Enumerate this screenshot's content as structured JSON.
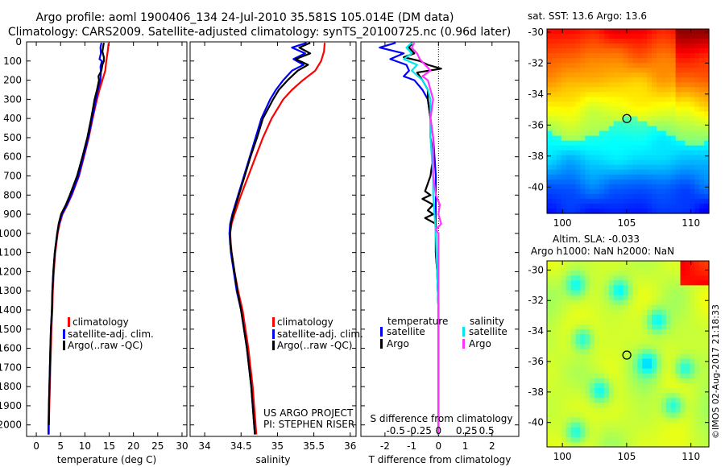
{
  "header": {
    "title_line1": "Argo profile: aoml 1900406_134 24-Jul-2010 35.581S 105.014E (DM data)",
    "title_line2": "Climatology: CARS2009. Satellite-adjusted climatology: synTS_20100725.nc (0.96d later)"
  },
  "colors": {
    "climatology": "#ff0000",
    "satellite": "#0000ff",
    "argo": "#000000",
    "sal_satellite": "#00e5ee",
    "sal_argo": "#ff33ff"
  },
  "depth_axis": {
    "ticks": [
      0,
      100,
      200,
      300,
      400,
      500,
      600,
      700,
      800,
      900,
      1000,
      1100,
      1200,
      1300,
      1400,
      1500,
      1600,
      1700,
      1800,
      1900,
      2000
    ],
    "ylim": [
      0,
      2060
    ]
  },
  "chart_data": [
    {
      "type": "line",
      "id": "temperature",
      "xlabel": "temperature (deg C)",
      "xticks": [
        0,
        5,
        10,
        15,
        20,
        25,
        30
      ],
      "xlim": [
        -2,
        31
      ],
      "legend": {
        "climatology": "climatology",
        "satellite": "satellite-adj. clim.",
        "argo": "Argo(..raw -QC)"
      },
      "series": [
        {
          "key": "climatology",
          "depth": [
            5,
            50,
            100,
            150,
            200,
            250,
            300,
            400,
            500,
            600,
            700,
            800,
            850,
            900,
            950,
            1000,
            1100,
            1200,
            1300,
            1400,
            1500,
            1600,
            1700,
            1800,
            1900,
            2000,
            2050
          ],
          "values": [
            14.9,
            14.7,
            14.4,
            14.2,
            13.6,
            13.0,
            12.5,
            11.6,
            10.8,
            9.8,
            8.8,
            7.3,
            6.4,
            5.4,
            4.8,
            4.4,
            3.9,
            3.6,
            3.4,
            3.3,
            3.1,
            3.0,
            2.9,
            2.8,
            2.7,
            2.6,
            2.6
          ]
        },
        {
          "key": "satellite",
          "depth": [
            5,
            30,
            60,
            90,
            100,
            130,
            160,
            200,
            250,
            300,
            400,
            500,
            600,
            700,
            800,
            850,
            900,
            950,
            1000,
            1100,
            1200,
            1300,
            1400,
            1500,
            1600,
            1700,
            1800,
            1900,
            2000,
            2050
          ],
          "values": [
            13.4,
            13.2,
            13.3,
            13.0,
            13.5,
            13.2,
            13.3,
            13.2,
            12.7,
            12.3,
            11.5,
            10.7,
            9.7,
            8.7,
            7.2,
            6.3,
            5.3,
            4.7,
            4.3,
            3.8,
            3.5,
            3.3,
            3.2,
            3.0,
            2.9,
            2.8,
            2.7,
            2.6,
            2.5,
            2.5
          ]
        },
        {
          "key": "argo",
          "depth": [
            5,
            20,
            50,
            80,
            100,
            120,
            150,
            180,
            200,
            250,
            300,
            400,
            500,
            600,
            700,
            800,
            850,
            900,
            950,
            1000,
            1100,
            1200,
            1300,
            1400,
            1500,
            1600,
            1700,
            1800,
            1900,
            2000
          ],
          "values": [
            13.9,
            13.8,
            13.6,
            13.9,
            13.9,
            13.6,
            13.4,
            12.8,
            12.9,
            12.5,
            12.0,
            11.3,
            10.5,
            9.5,
            8.4,
            6.9,
            6.1,
            5.1,
            4.6,
            4.3,
            3.8,
            3.5,
            3.3,
            3.2,
            3.0,
            2.9,
            2.8,
            2.7,
            2.6,
            2.6
          ]
        }
      ]
    },
    {
      "type": "line",
      "id": "salinity",
      "xlabel": "salinity",
      "xticks": [
        34,
        34.5,
        35,
        35.5,
        36
      ],
      "xtick_labels": [
        "34",
        "34.5",
        "35",
        "35.5",
        "36"
      ],
      "xlim": [
        33.8,
        36.08
      ],
      "legend": {
        "climatology": "climatology",
        "satellite": "satellite-adj. clim.",
        "argo": "Argo(..raw -QC)"
      },
      "annotation": [
        "US ARGO PROJECT",
        "PI: STEPHEN RISER"
      ],
      "series": [
        {
          "key": "climatology",
          "depth": [
            5,
            50,
            100,
            150,
            200,
            250,
            300,
            400,
            500,
            600,
            700,
            800,
            900,
            950,
            1000,
            1050,
            1100,
            1200,
            1300,
            1400,
            1500,
            1600,
            1700,
            1800,
            1900,
            2000,
            2050
          ],
          "values": [
            35.65,
            35.64,
            35.6,
            35.52,
            35.35,
            35.2,
            35.08,
            34.92,
            34.8,
            34.7,
            34.6,
            34.5,
            34.41,
            34.37,
            34.35,
            34.36,
            34.37,
            34.41,
            34.46,
            34.52,
            34.56,
            34.6,
            34.63,
            34.66,
            34.68,
            34.7,
            34.71
          ]
        },
        {
          "key": "satellite",
          "depth": [
            5,
            30,
            60,
            90,
            120,
            150,
            200,
            250,
            300,
            400,
            500,
            600,
            700,
            800,
            900,
            950,
            1000,
            1050,
            1100,
            1200,
            1300,
            1400,
            1500,
            1600,
            1700,
            1800,
            1900,
            2000,
            2050
          ],
          "values": [
            35.4,
            35.2,
            35.38,
            35.22,
            35.36,
            35.2,
            35.08,
            34.98,
            34.9,
            34.78,
            34.7,
            34.62,
            34.54,
            34.46,
            34.38,
            34.35,
            34.34,
            34.35,
            34.36,
            34.4,
            34.44,
            34.5,
            34.54,
            34.58,
            34.61,
            34.64,
            34.66,
            34.68,
            34.69
          ]
        },
        {
          "key": "argo",
          "depth": [
            5,
            30,
            60,
            90,
            120,
            150,
            200,
            250,
            300,
            400,
            500,
            600,
            700,
            800,
            900,
            950,
            1000,
            1050,
            1100,
            1200,
            1300,
            1400,
            1500,
            1600,
            1700,
            1800,
            1900,
            2000,
            2050
          ],
          "values": [
            35.45,
            35.3,
            35.45,
            35.25,
            35.42,
            35.28,
            35.14,
            35.02,
            34.94,
            34.8,
            34.72,
            34.63,
            34.55,
            34.47,
            34.39,
            34.36,
            34.35,
            34.35,
            34.37,
            34.41,
            34.45,
            34.5,
            34.54,
            34.58,
            34.61,
            34.64,
            34.66,
            34.68,
            34.69
          ]
        }
      ]
    },
    {
      "type": "line",
      "id": "difference",
      "xlabel": "T difference from climatology",
      "top_axis_label": "S difference from climatology",
      "xticks": [
        -2,
        -1,
        0,
        1,
        2
      ],
      "top_xtick_labels": [
        "-0.5",
        "-0.25",
        "0",
        "0.25",
        "0.5"
      ],
      "xlim": [
        -2.9,
        3.0
      ],
      "legend": {
        "temperature": "temperature",
        "salinity": "salinity",
        "t_satellite": "satellite",
        "t_argo": "Argo",
        "s_satellite": "satellite",
        "s_argo": "Argo"
      },
      "series": [
        {
          "key": "satellite",
          "depth": [
            5,
            30,
            60,
            90,
            120,
            150,
            180,
            200,
            250,
            300,
            400,
            500,
            600,
            700,
            800,
            900,
            1000,
            1100,
            1200,
            1400,
            1600,
            1800,
            2000,
            2050
          ],
          "values": [
            -1.6,
            -2.2,
            -1.3,
            -1.8,
            -1.2,
            -1.1,
            -1.3,
            -0.9,
            -0.6,
            -0.4,
            -0.3,
            -0.2,
            -0.15,
            -0.1,
            -0.1,
            -0.1,
            -0.1,
            -0.1,
            -0.05,
            0,
            0,
            0,
            0,
            0
          ]
        },
        {
          "key": "argo",
          "depth": [
            5,
            30,
            60,
            80,
            100,
            120,
            140,
            160,
            200,
            250,
            300,
            400,
            500,
            600,
            700,
            780,
            800,
            820,
            850,
            880,
            900,
            920,
            950,
            1000,
            1100,
            1200,
            1400,
            1600,
            1800,
            2000,
            2050
          ],
          "values": [
            -1.0,
            -1.1,
            -0.9,
            -1.3,
            -0.7,
            -0.4,
            0.1,
            -0.8,
            -0.6,
            -0.4,
            -0.4,
            -0.3,
            -0.3,
            -0.2,
            -0.3,
            -0.5,
            -0.3,
            -0.6,
            -0.2,
            -0.4,
            -0.2,
            -0.5,
            -0.1,
            -0.1,
            -0.1,
            -0.05,
            0,
            0,
            0,
            0,
            0
          ]
        },
        {
          "key": "sal_satellite",
          "depth": [
            5,
            30,
            60,
            90,
            120,
            150,
            200,
            250,
            300,
            400,
            500,
            600,
            700,
            800,
            900,
            1000,
            1200,
            1400,
            1600,
            1800,
            2000,
            2050
          ],
          "values": [
            -1.0,
            -1.2,
            -1.0,
            -1.3,
            -0.8,
            -1.0,
            -0.6,
            -0.4,
            -0.3,
            -0.3,
            -0.3,
            -0.25,
            -0.2,
            -0.2,
            -0.15,
            -0.1,
            -0.05,
            0,
            0,
            0,
            0,
            0
          ]
        },
        {
          "key": "sal_argo",
          "depth": [
            5,
            30,
            60,
            90,
            120,
            150,
            180,
            200,
            250,
            300,
            400,
            500,
            600,
            700,
            800,
            850,
            900,
            950,
            980,
            1000,
            1100,
            1200,
            1400,
            1600,
            1800,
            2000,
            2050
          ],
          "values": [
            -0.9,
            -1.0,
            -0.8,
            -0.7,
            -0.5,
            -0.3,
            -0.6,
            -0.4,
            -0.3,
            -0.2,
            -0.3,
            -0.2,
            -0.2,
            -0.2,
            -0.1,
            0.05,
            0,
            0.1,
            -0.1,
            0,
            0,
            0,
            0,
            0,
            0,
            0,
            0
          ]
        }
      ]
    },
    {
      "type": "heatmap",
      "id": "sst_map",
      "title": "sat. SST: 13.6  Argo: 13.6",
      "xticks": [
        100,
        105,
        110
      ],
      "yticks": [
        -30,
        -32,
        -34,
        -36,
        -38,
        -40
      ],
      "xlim": [
        98.8,
        111.4
      ],
      "ylim": [
        -41.7,
        -29.8
      ],
      "float_position": [
        105.014,
        -35.581
      ]
    },
    {
      "type": "heatmap",
      "id": "sla_map",
      "title_line1": "Altim. SLA: -0.033",
      "title_line2": "Argo h1000: NaN h2000: NaN",
      "xticks": [
        100,
        105,
        110
      ],
      "yticks": [
        -30,
        -32,
        -34,
        -36,
        -38,
        -40
      ],
      "xlim": [
        98.8,
        111.4
      ],
      "ylim": [
        -41.6,
        -29.4
      ],
      "float_position": [
        105.014,
        -35.581
      ]
    }
  ],
  "credit": "©IMOS 02-Aug-2017 21:18:33"
}
